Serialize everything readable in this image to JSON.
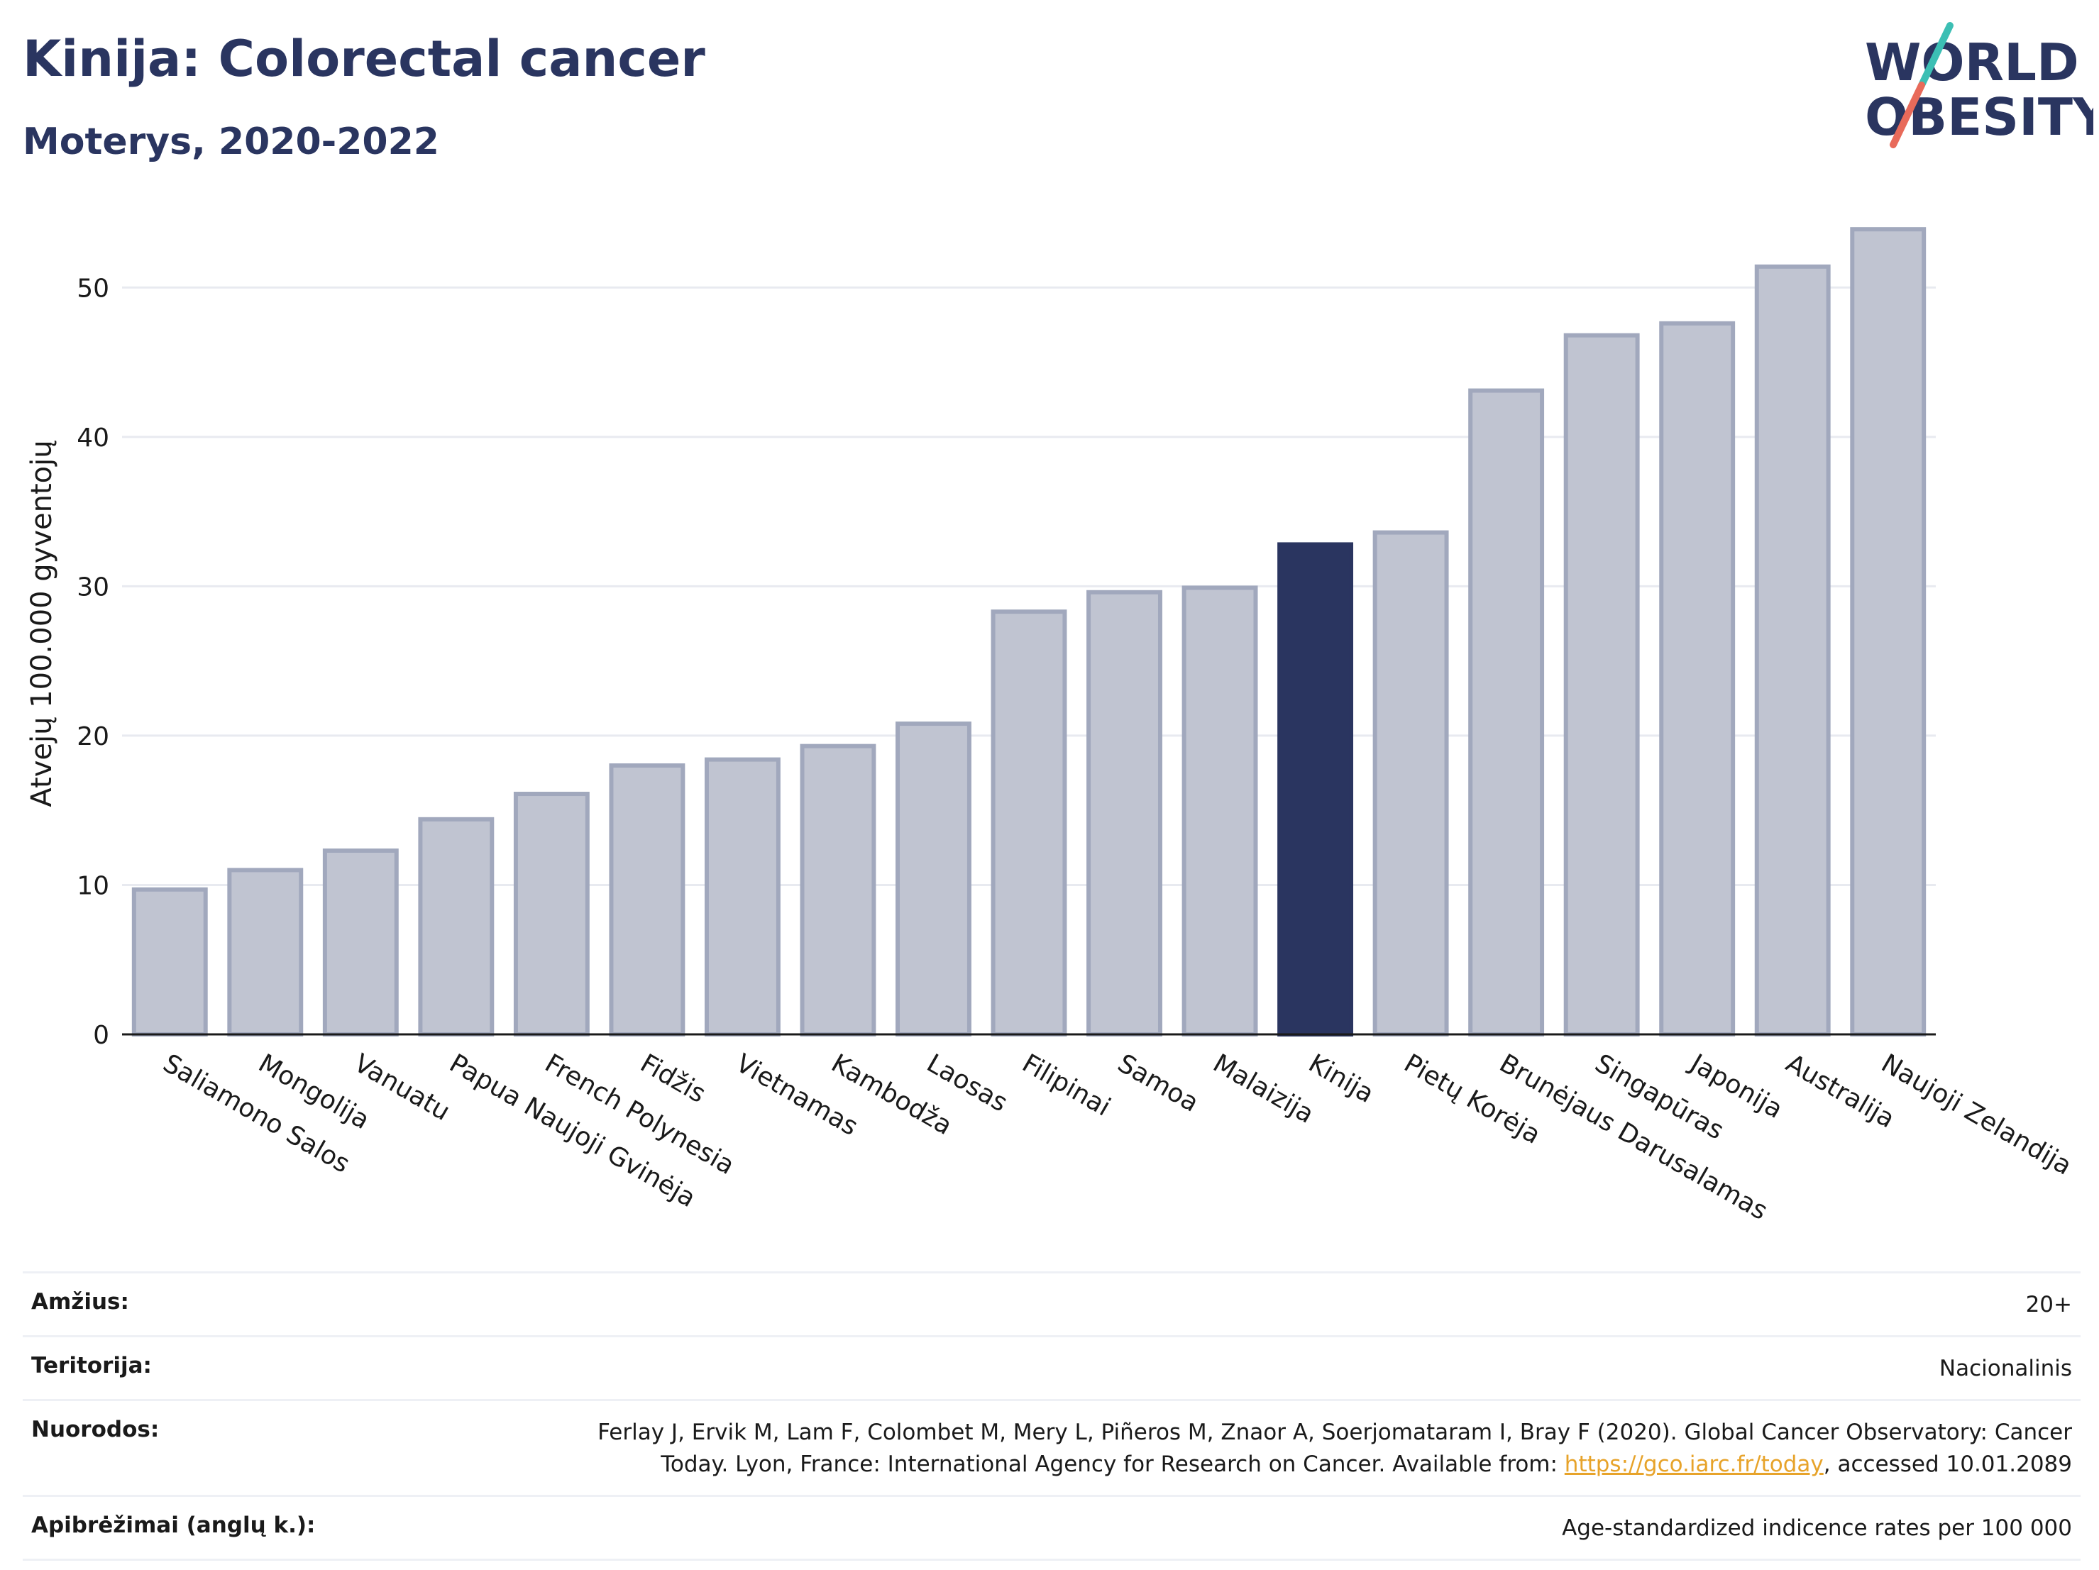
{
  "header": {
    "title": "Kinija: Colorectal cancer",
    "subtitle": "Moterys, 2020-2022",
    "logo_text_line1": "WORLD",
    "logo_text_line2": "OBESITY"
  },
  "colors": {
    "bar_default": "#c0c4d1",
    "bar_default_border": "#a1a8bd",
    "bar_highlight": "#2a3560",
    "title": "#2a3560",
    "logo_teal": "#3cbfb4",
    "logo_red": "#e86a5a"
  },
  "chart_data": {
    "type": "bar",
    "title": "Kinija: Colorectal cancer",
    "subtitle": "Moterys, 2020-2022",
    "ylabel": "Atvejų 100.000 gyventojų",
    "xlabel": "",
    "ylim": [
      0,
      55
    ],
    "yticks": [
      0,
      10,
      20,
      30,
      40,
      50
    ],
    "grid": true,
    "highlight": "Kinija",
    "categories": [
      "Saliamono Salos",
      "Mongolija",
      "Vanuatu",
      "Papua Naujoji Gvinėja",
      "French Polynesia",
      "Fidžis",
      "Vietnamas",
      "Kambodža",
      "Laosas",
      "Filipinai",
      "Samoa",
      "Malaizija",
      "Kinija",
      "Pietų Korėja",
      "Brunėjaus Darusalamas",
      "Singapūras",
      "Japonija",
      "Australija",
      "Naujoji Zelandija"
    ],
    "values": [
      9.7,
      11.0,
      12.3,
      14.4,
      16.1,
      18.0,
      18.4,
      19.3,
      20.8,
      28.3,
      29.6,
      29.9,
      32.8,
      33.6,
      43.1,
      46.8,
      47.6,
      51.4,
      53.9
    ]
  },
  "info": [
    {
      "key": "Amžius:",
      "value": "20+"
    },
    {
      "key": "Teritorija:",
      "value": "Nacionalinis"
    },
    {
      "key": "Nuorodos:",
      "value_line1": "Ferlay J, Ervik M, Lam F, Colombet M, Mery L, Piñeros M, Znaor A, Soerjomataram I, Bray F (2020). Global Cancer Observatory: Cancer",
      "value_pre": "Today. Lyon, France: International Agency for Research on Cancer. Available from: ",
      "link": "https://gco.iarc.fr/today",
      "value_post": ", accessed 10.01.2089"
    },
    {
      "key": "Apibrėžimai (anglų k.):",
      "value": "Age-standardized indicence rates per 100 000"
    }
  ]
}
